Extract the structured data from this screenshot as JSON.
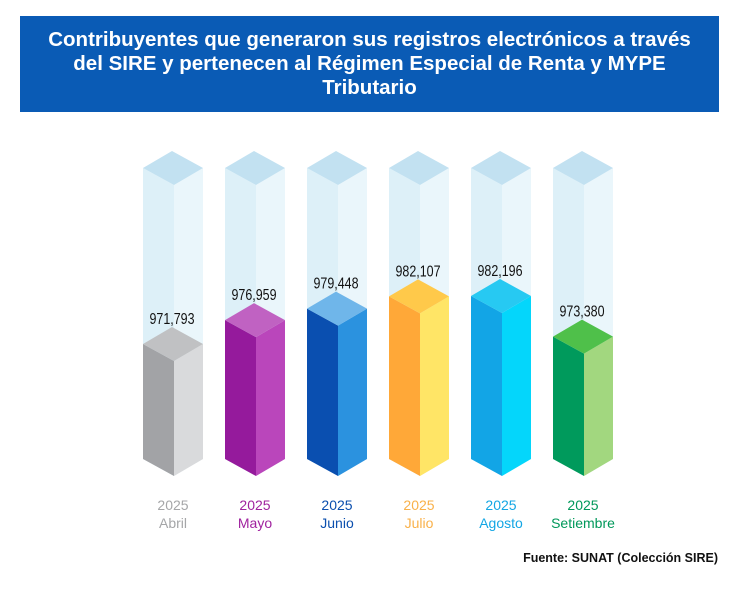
{
  "chart_data": {
    "type": "bar",
    "title": "Contribuyentes que generaron sus registros electrónicos a través del SIRE y pertenecen al Régimen Especial de Renta y MYPE Tributario",
    "xlabel": "",
    "ylabel": "",
    "ylim": [
      960000,
      990000
    ],
    "grid": false,
    "legend": "none",
    "categories": [
      {
        "year": "2025",
        "month": "Abril"
      },
      {
        "year": "2025",
        "month": "Mayo"
      },
      {
        "year": "2025",
        "month": "Junio"
      },
      {
        "year": "2025",
        "month": "Julio"
      },
      {
        "year": "2025",
        "month": "Agosto"
      },
      {
        "year": "2025",
        "month": "Setiembre"
      }
    ],
    "values": [
      971793,
      976959,
      979448,
      982107,
      982196,
      973380
    ],
    "value_labels": [
      "971,793",
      "976,959",
      "979,448",
      "982,107",
      "982,196",
      "973,380"
    ],
    "colors": [
      {
        "front": "#a2a3a6",
        "side": "#d9dadc",
        "top": "#c0c1c3",
        "label": "#a5a6a8"
      },
      {
        "front": "#951a9c",
        "side": "#ba46bb",
        "top": "#c062c2",
        "label": "#a0239f"
      },
      {
        "front": "#0a4fb0",
        "side": "#2b92df",
        "top": "#6fb6ea",
        "label": "#0b4fae"
      },
      {
        "front": "#ffa838",
        "side": "#ffe566",
        "top": "#ffc94a",
        "label": "#f9b14a"
      },
      {
        "front": "#12a5e6",
        "side": "#04d6fb",
        "top": "#27c9f2",
        "label": "#13a6e4"
      },
      {
        "front": "#009a5c",
        "side": "#a2d77f",
        "top": "#4fc04a",
        "label": "#00985a"
      }
    ],
    "tube_colors": {
      "front": "#ddf0f8",
      "side": "#eaf6fb",
      "top": "#c2e1f1"
    }
  },
  "source": "Fuente: SUNAT (Colección SIRE)"
}
